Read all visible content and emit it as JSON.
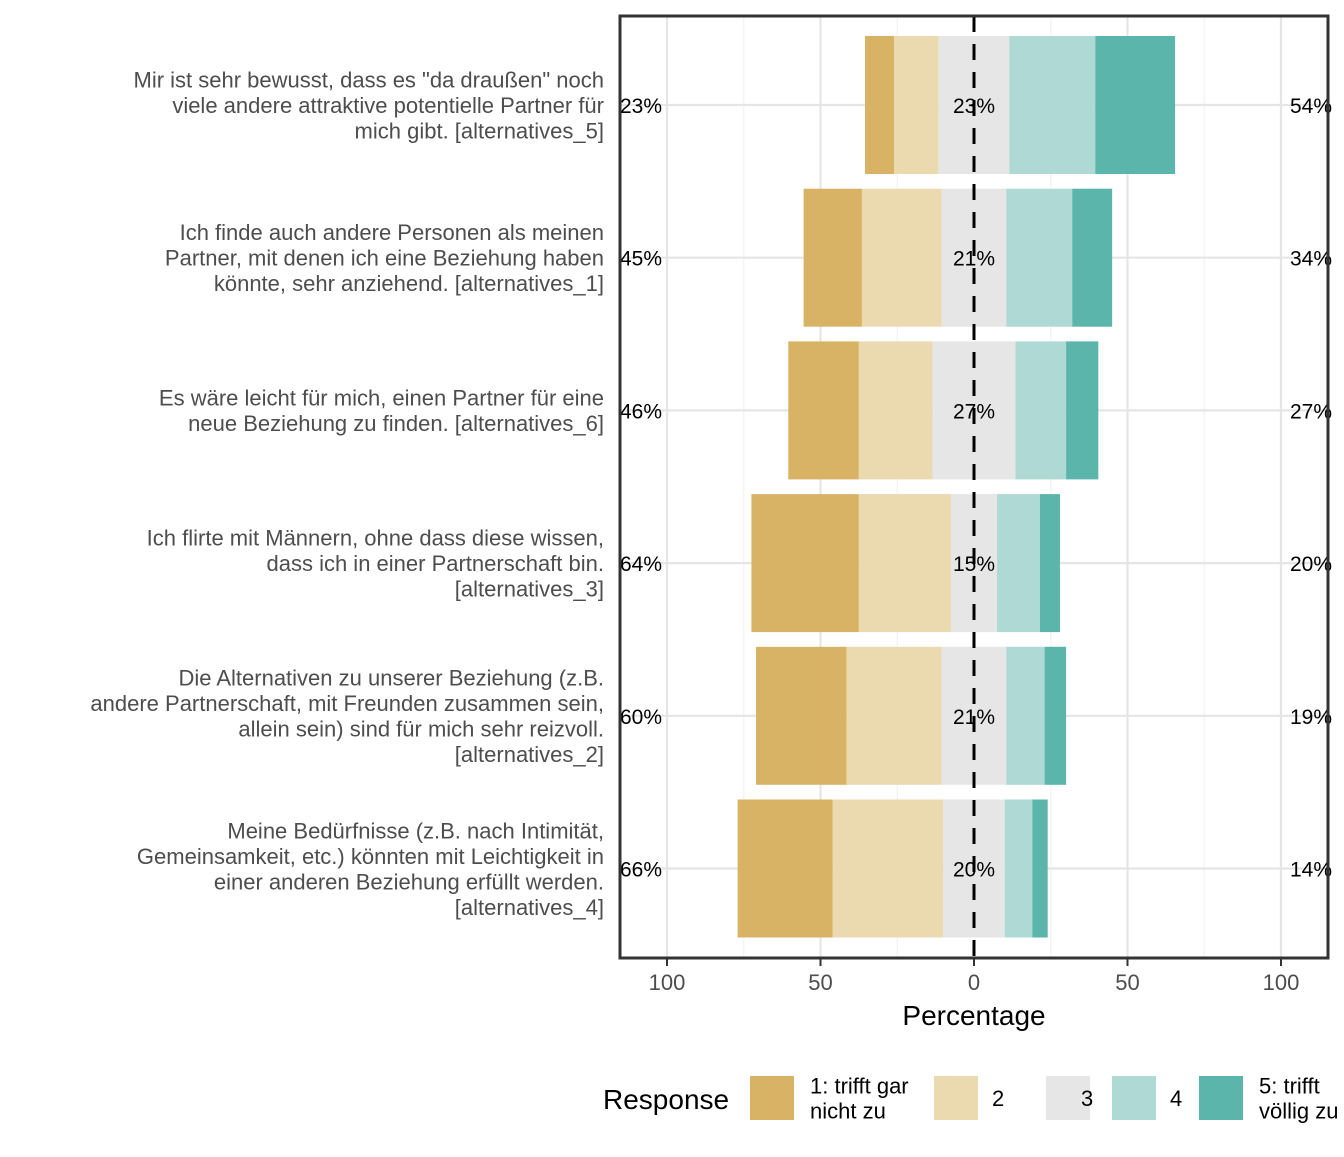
{
  "chart_data": {
    "type": "bar",
    "subtype": "diverging-stacked-likert",
    "title": "",
    "xlabel": "Percentage",
    "ylabel": "",
    "xlim": [
      -100,
      100
    ],
    "x_ticks": [
      -100,
      -50,
      0,
      50,
      100
    ],
    "x_tick_labels": [
      "100",
      "50",
      "0",
      "50",
      "100"
    ],
    "grid": true,
    "legend": {
      "title": "Response",
      "position": "bottom",
      "entries": [
        {
          "label": "1: trifft gar\nnicht zu",
          "color": "#D9B365"
        },
        {
          "label": "2",
          "color": "#EBD9B0"
        },
        {
          "label": "3",
          "color": "#E6E6E6"
        },
        {
          "label": "4",
          "color": "#AED9D5"
        },
        {
          "label": "5: trifft\nvöllig zu",
          "color": "#5BB5AA"
        }
      ]
    },
    "items": [
      {
        "label": "Mir ist sehr bewusst, dass es \"da draußen\" noch\nviele andere attraktive potentielle Partner für\nmich gibt. [alternatives_5]",
        "values": [
          9.5,
          14.5,
          23,
          28,
          26
        ],
        "low_pct": "23%",
        "neutral_pct": "23%",
        "high_pct": "54%"
      },
      {
        "label": "Ich finde auch andere Personen als meinen\nPartner, mit denen ich eine Beziehung haben\nkönnte, sehr anziehend. [alternatives_1]",
        "values": [
          19,
          26,
          21,
          21.5,
          13
        ],
        "low_pct": "45%",
        "neutral_pct": "21%",
        "high_pct": "34%"
      },
      {
        "label": "Es wäre leicht für mich, einen Partner für eine\nneue Beziehung zu finden. [alternatives_6]",
        "values": [
          23,
          24,
          27,
          16.5,
          10.5
        ],
        "low_pct": "46%",
        "neutral_pct": "27%",
        "high_pct": "27%"
      },
      {
        "label": "Ich flirte mit Männern, ohne dass diese wissen,\ndass ich in einer Partnerschaft bin.\n[alternatives_3]",
        "values": [
          35,
          30,
          15,
          14,
          6.5
        ],
        "low_pct": "64%",
        "neutral_pct": "15%",
        "high_pct": "20%"
      },
      {
        "label": "Die Alternativen zu unserer Beziehung (z.B.\nandere Partnerschaft, mit Freunden zusammen sein,\nallein sein) sind für mich sehr reizvoll.\n[alternatives_2]",
        "values": [
          29.5,
          31,
          21,
          12.5,
          7
        ],
        "low_pct": "60%",
        "neutral_pct": "21%",
        "high_pct": "19%"
      },
      {
        "label": "Meine Bedürfnisse (z.B. nach Intimität,\nGemeinsamkeit, etc.) könnten mit Leichtigkeit in\neiner anderen Beziehung erfüllt werden.\n[alternatives_4]",
        "values": [
          31,
          36,
          20,
          9,
          5
        ],
        "low_pct": "66%",
        "neutral_pct": "20%",
        "high_pct": "14%"
      }
    ]
  }
}
